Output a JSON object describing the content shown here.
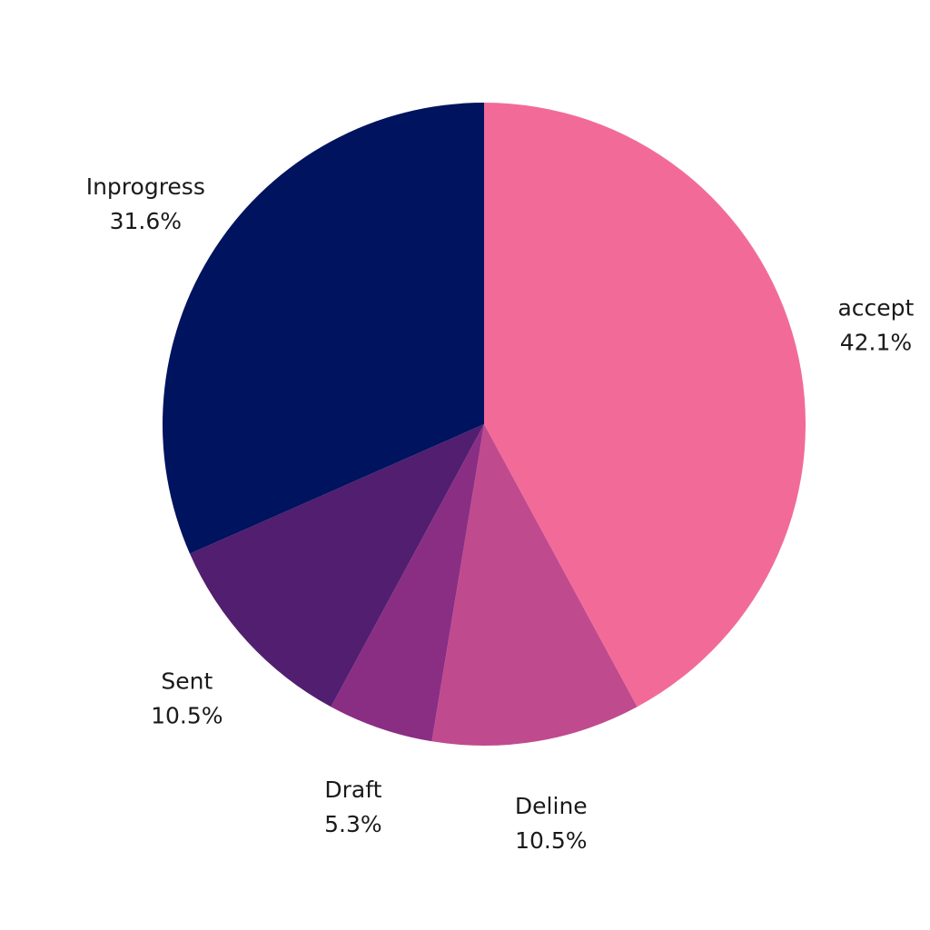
{
  "chart_data": {
    "type": "pie",
    "title": "",
    "categories": [
      "accept",
      "Deline",
      "Draft",
      "Sent",
      "Inprogress"
    ],
    "values": [
      42.1,
      10.5,
      5.3,
      10.5,
      31.6
    ],
    "value_labels": [
      "42.1%",
      "10.5%",
      "5.3%",
      "10.5%",
      "31.6%"
    ],
    "colors": [
      "#F26B98",
      "#C04A8E",
      "#8A2E84",
      "#521E6F",
      "#00135E"
    ],
    "start_angle": "12 o'clock",
    "direction": "clockwise",
    "legend": "none",
    "labels_outside": true
  }
}
